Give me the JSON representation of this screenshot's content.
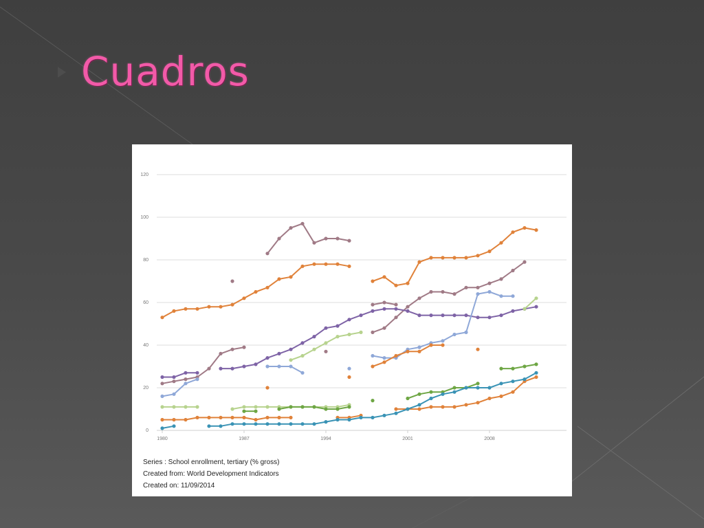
{
  "slide": {
    "title": "Cuadros",
    "title_color": "#f25aa8",
    "background_color": "#444444"
  },
  "chart_notes": {
    "series_line": "Series : School enrollment, tertiary (% gross)",
    "created_from_line": "Created from: World Development Indicators",
    "created_on_line": "Created on: 11/09/2014"
  },
  "chart_data": {
    "type": "line",
    "title": "",
    "xlabel": "",
    "ylabel": "",
    "xlim": [
      1980,
      2012
    ],
    "ylim": [
      0,
      120
    ],
    "x_ticks": [
      1980,
      1987,
      1994,
      2001,
      2008
    ],
    "y_ticks": [
      0,
      20,
      40,
      60,
      80,
      100,
      120
    ],
    "grid": "horizontal",
    "legend": "none",
    "series": [
      {
        "color": "#e0823a",
        "values": [
          [
            1980,
            53
          ],
          [
            1981,
            56
          ],
          [
            1982,
            57
          ],
          [
            1983,
            57
          ],
          [
            1984,
            58
          ],
          [
            1985,
            58
          ],
          [
            1986,
            59
          ],
          [
            1987,
            62
          ],
          [
            1988,
            65
          ],
          [
            1989,
            67
          ],
          [
            1990,
            71
          ],
          [
            1991,
            72
          ],
          [
            1992,
            77
          ],
          [
            1993,
            78
          ],
          [
            1994,
            78
          ],
          [
            1995,
            78
          ],
          [
            1996,
            77
          ],
          null,
          [
            1998,
            70
          ],
          [
            1999,
            72
          ],
          [
            2000,
            68
          ],
          [
            2001,
            69
          ],
          [
            2002,
            79
          ],
          [
            2003,
            81
          ],
          [
            2004,
            81
          ],
          [
            2005,
            81
          ],
          [
            2006,
            81
          ],
          [
            2007,
            82
          ],
          [
            2008,
            84
          ],
          [
            2009,
            88
          ],
          [
            2010,
            93
          ],
          [
            2011,
            95
          ],
          [
            2012,
            94
          ]
        ]
      },
      {
        "color": "#a07a86",
        "values": [
          [
            1980,
            22
          ],
          [
            1981,
            23
          ],
          [
            1982,
            24
          ],
          [
            1983,
            25
          ],
          [
            1984,
            29
          ],
          [
            1985,
            36
          ],
          [
            1986,
            38
          ],
          [
            1987,
            39
          ],
          null,
          [
            1986,
            70
          ],
          null,
          [
            1989,
            83
          ],
          [
            1990,
            90
          ],
          [
            1991,
            95
          ],
          [
            1992,
            97
          ],
          [
            1993,
            88
          ],
          [
            1994,
            90
          ],
          [
            1995,
            90
          ],
          [
            1996,
            89
          ],
          null,
          [
            1994,
            37
          ],
          null,
          [
            1998,
            46
          ],
          [
            1999,
            48
          ],
          [
            2000,
            53
          ],
          [
            2001,
            58
          ],
          [
            2002,
            62
          ],
          [
            2003,
            65
          ],
          [
            2004,
            65
          ],
          [
            2005,
            64
          ],
          [
            2006,
            67
          ],
          [
            2007,
            67
          ],
          [
            2008,
            69
          ],
          [
            2009,
            71
          ],
          [
            2010,
            75
          ],
          [
            2011,
            79
          ],
          null,
          [
            1998,
            59
          ],
          [
            1999,
            60
          ],
          [
            2000,
            59
          ]
        ]
      },
      {
        "color": "#7e63a6",
        "values": [
          [
            1980,
            25
          ],
          [
            1981,
            25
          ],
          [
            1982,
            27
          ],
          [
            1983,
            27
          ],
          null,
          [
            1985,
            29
          ],
          [
            1986,
            29
          ],
          [
            1987,
            30
          ],
          [
            1988,
            31
          ],
          [
            1989,
            34
          ],
          [
            1990,
            36
          ],
          [
            1991,
            38
          ],
          [
            1992,
            41
          ],
          [
            1993,
            44
          ],
          [
            1994,
            48
          ],
          [
            1995,
            49
          ],
          [
            1996,
            52
          ],
          [
            1997,
            54
          ],
          [
            1998,
            56
          ],
          [
            1999,
            57
          ],
          [
            2000,
            57
          ],
          [
            2001,
            56
          ],
          [
            2002,
            54
          ],
          [
            2003,
            54
          ],
          [
            2004,
            54
          ],
          [
            2005,
            54
          ],
          [
            2006,
            54
          ],
          [
            2007,
            53
          ],
          [
            2008,
            53
          ],
          [
            2009,
            54
          ],
          [
            2010,
            56
          ],
          [
            2011,
            57
          ],
          [
            2012,
            58
          ]
        ]
      },
      {
        "color": "#8fa8d8",
        "values": [
          [
            1980,
            16
          ],
          [
            1981,
            17
          ],
          [
            1982,
            22
          ],
          [
            1983,
            24
          ],
          null,
          [
            1989,
            30
          ],
          [
            1990,
            30
          ],
          [
            1991,
            30
          ],
          [
            1992,
            27
          ],
          null,
          [
            1996,
            29
          ],
          null,
          [
            1998,
            35
          ],
          [
            1999,
            34
          ],
          [
            2000,
            34
          ],
          [
            2001,
            38
          ],
          [
            2002,
            39
          ],
          [
            2003,
            41
          ],
          [
            2004,
            42
          ],
          [
            2005,
            45
          ],
          [
            2006,
            46
          ],
          [
            2007,
            64
          ],
          [
            2008,
            65
          ],
          [
            2009,
            63
          ],
          [
            2010,
            63
          ]
        ]
      },
      {
        "color": "#e0823a",
        "values": [
          [
            1989,
            20
          ],
          null,
          [
            1996,
            25
          ],
          null,
          [
            1998,
            30
          ],
          [
            1999,
            32
          ],
          [
            2000,
            35
          ],
          [
            2001,
            37
          ],
          [
            2002,
            37
          ],
          [
            2003,
            40
          ],
          [
            2004,
            40
          ],
          null,
          [
            2007,
            38
          ]
        ]
      },
      {
        "color": "#b7d38e",
        "values": [
          [
            1980,
            11
          ],
          [
            1981,
            11
          ],
          [
            1982,
            11
          ],
          [
            1983,
            11
          ],
          null,
          [
            1986,
            10
          ],
          [
            1987,
            11
          ],
          [
            1988,
            11
          ],
          [
            1989,
            11
          ],
          [
            1990,
            11
          ],
          [
            1991,
            11
          ],
          [
            1992,
            11
          ],
          [
            1993,
            11
          ],
          [
            1994,
            11
          ],
          [
            1995,
            11
          ],
          [
            1996,
            12
          ],
          null,
          [
            1991,
            33
          ],
          [
            1992,
            35
          ],
          [
            1993,
            38
          ],
          [
            1994,
            41
          ],
          [
            1995,
            44
          ],
          [
            1996,
            45
          ],
          [
            1997,
            46
          ],
          null,
          [
            2011,
            57
          ],
          [
            2012,
            62
          ]
        ]
      },
      {
        "color": "#6ea644",
        "values": [
          [
            1987,
            9
          ],
          [
            1988,
            9
          ],
          null,
          [
            1990,
            10
          ],
          [
            1991,
            11
          ],
          [
            1992,
            11
          ],
          [
            1993,
            11
          ],
          [
            1994,
            10
          ],
          [
            1995,
            10
          ],
          [
            1996,
            11
          ],
          null,
          [
            1998,
            14
          ],
          null,
          [
            2001,
            15
          ],
          [
            2002,
            17
          ],
          [
            2003,
            18
          ],
          [
            2004,
            18
          ],
          [
            2005,
            20
          ],
          [
            2006,
            20
          ],
          [
            2007,
            22
          ],
          null,
          [
            2009,
            29
          ],
          [
            2010,
            29
          ],
          [
            2011,
            30
          ],
          [
            2012,
            31
          ]
        ]
      },
      {
        "color": "#e0823a",
        "values": [
          [
            1980,
            5
          ],
          [
            1981,
            5
          ],
          [
            1982,
            5
          ],
          [
            1983,
            6
          ],
          [
            1984,
            6
          ],
          [
            1985,
            6
          ],
          [
            1986,
            6
          ],
          [
            1987,
            6
          ],
          [
            1988,
            5
          ],
          [
            1989,
            6
          ],
          [
            1990,
            6
          ],
          [
            1991,
            6
          ],
          null,
          [
            1995,
            6
          ],
          [
            1996,
            6
          ],
          [
            1997,
            7
          ],
          null,
          [
            2000,
            10
          ],
          [
            2001,
            10
          ],
          [
            2002,
            10
          ],
          [
            2003,
            11
          ],
          [
            2004,
            11
          ],
          [
            2005,
            11
          ],
          [
            2006,
            12
          ],
          [
            2007,
            13
          ],
          [
            2008,
            15
          ],
          [
            2009,
            16
          ],
          [
            2010,
            18
          ],
          [
            2011,
            23
          ],
          [
            2012,
            25
          ]
        ]
      },
      {
        "color": "#3a93b5",
        "values": [
          [
            1980,
            1
          ],
          [
            1981,
            2
          ],
          null,
          [
            1984,
            2
          ],
          [
            1985,
            2
          ],
          [
            1986,
            3
          ],
          [
            1987,
            3
          ],
          [
            1988,
            3
          ],
          [
            1989,
            3
          ],
          [
            1990,
            3
          ],
          [
            1991,
            3
          ],
          [
            1992,
            3
          ],
          [
            1993,
            3
          ],
          [
            1994,
            4
          ],
          [
            1995,
            5
          ],
          [
            1996,
            5
          ],
          [
            1997,
            6
          ],
          [
            1998,
            6
          ],
          [
            1999,
            7
          ],
          [
            2000,
            8
          ],
          [
            2001,
            10
          ],
          [
            2002,
            12
          ],
          [
            2003,
            15
          ],
          [
            2004,
            17
          ],
          [
            2005,
            18
          ],
          [
            2006,
            20
          ],
          [
            2007,
            20
          ],
          [
            2008,
            20
          ],
          [
            2009,
            22
          ],
          [
            2010,
            23
          ],
          [
            2011,
            24
          ],
          [
            2012,
            27
          ]
        ]
      }
    ]
  }
}
